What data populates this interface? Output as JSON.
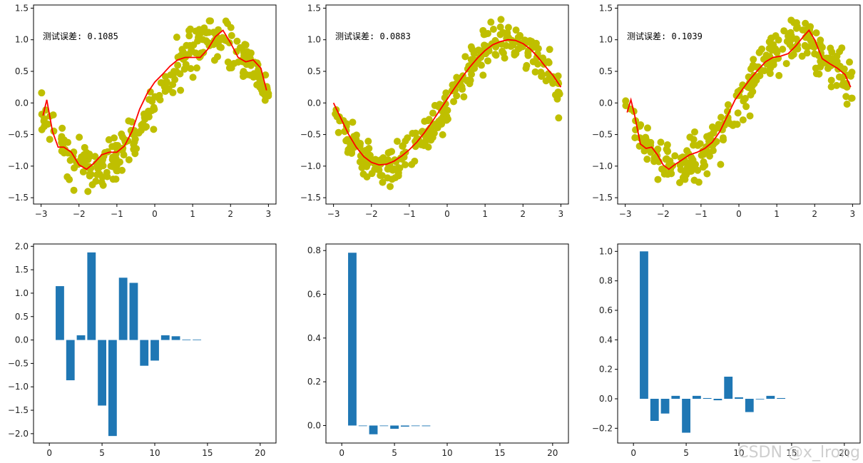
{
  "watermark": "CSDN @x_lrong",
  "colors": {
    "scatter": "#bfbf00",
    "fit_line": "#ff0000",
    "bar": "#1f77b4"
  },
  "chart_data": [
    {
      "type": "scatter",
      "panel": "top-left",
      "annotation": "测试误差: 0.1085",
      "scatter": {
        "kind": "noisy-sine",
        "n": 300,
        "x_range": [
          -3,
          3
        ],
        "noise": 0.25
      },
      "fit": {
        "x": [
          -2.95,
          -2.85,
          -2.7,
          -2.55,
          -2.4,
          -2.2,
          -2.0,
          -1.8,
          -1.6,
          -1.4,
          -1.2,
          -1.0,
          -0.8,
          -0.6,
          -0.4,
          -0.2,
          0.0,
          0.2,
          0.4,
          0.6,
          0.8,
          1.0,
          1.2,
          1.4,
          1.6,
          1.8,
          2.0,
          2.2,
          2.4,
          2.6,
          2.8,
          2.95
        ],
        "y": [
          -0.2,
          0.05,
          -0.45,
          -0.7,
          -0.7,
          -0.78,
          -0.98,
          -1.05,
          -0.95,
          -0.82,
          -0.78,
          -0.78,
          -0.68,
          -0.45,
          -0.1,
          0.15,
          0.33,
          0.45,
          0.58,
          0.68,
          0.72,
          0.72,
          0.72,
          0.85,
          1.05,
          1.15,
          0.95,
          0.72,
          0.65,
          0.68,
          0.55,
          0.2
        ]
      },
      "xticks": [
        -3,
        -2,
        -1,
        0,
        1,
        2,
        3
      ],
      "yticks": [
        -1.5,
        -1.0,
        -0.5,
        0.0,
        0.5,
        1.0,
        1.5
      ],
      "xlim": [
        -3.2,
        3.2
      ],
      "ylim": [
        -1.6,
        1.55
      ]
    },
    {
      "type": "scatter",
      "panel": "top-middle",
      "annotation": "测试误差: 0.0883",
      "scatter": {
        "kind": "noisy-sine",
        "n": 300,
        "x_range": [
          -3,
          3
        ],
        "noise": 0.25
      },
      "fit": {
        "x": [
          -3.0,
          -2.8,
          -2.6,
          -2.4,
          -2.2,
          -2.0,
          -1.8,
          -1.6,
          -1.4,
          -1.2,
          -1.0,
          -0.8,
          -0.6,
          -0.4,
          -0.2,
          0.0,
          0.2,
          0.4,
          0.6,
          0.8,
          1.0,
          1.2,
          1.4,
          1.6,
          1.8,
          2.0,
          2.2,
          2.4,
          2.6,
          2.8,
          3.0
        ],
        "y": [
          0.0,
          -0.25,
          -0.5,
          -0.7,
          -0.85,
          -0.94,
          -0.98,
          -0.97,
          -0.92,
          -0.84,
          -0.74,
          -0.62,
          -0.47,
          -0.3,
          -0.12,
          0.06,
          0.24,
          0.41,
          0.57,
          0.71,
          0.83,
          0.92,
          0.97,
          1.0,
          0.99,
          0.94,
          0.85,
          0.72,
          0.57,
          0.43,
          0.25
        ]
      },
      "xticks": [
        -3,
        -2,
        -1,
        0,
        1,
        2,
        3
      ],
      "yticks": [
        -1.5,
        -1.0,
        -0.5,
        0.0,
        0.5,
        1.0,
        1.5
      ],
      "xlim": [
        -3.2,
        3.2
      ],
      "ylim": [
        -1.6,
        1.55
      ]
    },
    {
      "type": "scatter",
      "panel": "top-right",
      "annotation": "测试误差: 0.1039",
      "scatter": {
        "kind": "noisy-sine",
        "n": 300,
        "x_range": [
          -3,
          3
        ],
        "noise": 0.25
      },
      "fit": {
        "x": [
          -2.95,
          -2.85,
          -2.75,
          -2.6,
          -2.45,
          -2.3,
          -2.15,
          -2.0,
          -1.85,
          -1.7,
          -1.5,
          -1.3,
          -1.1,
          -0.9,
          -0.7,
          -0.5,
          -0.3,
          -0.1,
          0.1,
          0.3,
          0.5,
          0.7,
          0.9,
          1.1,
          1.3,
          1.5,
          1.7,
          1.85,
          2.0,
          2.2,
          2.4,
          2.6,
          2.8,
          2.95
        ],
        "y": [
          -0.15,
          0.05,
          -0.2,
          -0.65,
          -0.72,
          -0.7,
          -0.82,
          -0.98,
          -1.05,
          -0.98,
          -0.9,
          -0.82,
          -0.78,
          -0.72,
          -0.62,
          -0.45,
          -0.2,
          0.05,
          0.22,
          0.38,
          0.52,
          0.65,
          0.72,
          0.74,
          0.78,
          0.9,
          1.05,
          1.15,
          1.0,
          0.7,
          0.62,
          0.55,
          0.45,
          0.25
        ]
      },
      "xticks": [
        -3,
        -2,
        -1,
        0,
        1,
        2,
        3
      ],
      "yticks": [
        -1.5,
        -1.0,
        -0.5,
        0.0,
        0.5,
        1.0,
        1.5
      ],
      "xlim": [
        -3.2,
        3.2
      ],
      "ylim": [
        -1.6,
        1.55
      ]
    },
    {
      "type": "bar",
      "panel": "bottom-left",
      "x": [
        1,
        2,
        3,
        4,
        5,
        6,
        7,
        8,
        9,
        10,
        11,
        12,
        13,
        14
      ],
      "values": [
        1.15,
        -0.86,
        0.1,
        1.87,
        -1.4,
        -2.05,
        1.33,
        1.22,
        -0.55,
        -0.44,
        0.1,
        0.08,
        0.01,
        0.01
      ],
      "xticks": [
        0,
        5,
        10,
        15,
        20
      ],
      "yticks": [
        -2.0,
        -1.5,
        -1.0,
        -0.5,
        0.0,
        0.5,
        1.0,
        1.5,
        2.0
      ],
      "xlim": [
        -1.5,
        21.5
      ],
      "ylim": [
        -2.2,
        2.05
      ]
    },
    {
      "type": "bar",
      "panel": "bottom-middle",
      "x": [
        1,
        2,
        3,
        4,
        5,
        6,
        7,
        8
      ],
      "values": [
        0.79,
        0.0,
        -0.04,
        0.0,
        -0.015,
        -0.005,
        0.0,
        -0.003
      ],
      "xticks": [
        0,
        5,
        10,
        15,
        20
      ],
      "yticks": [
        0.0,
        0.2,
        0.4,
        0.6,
        0.8
      ],
      "xlim": [
        -1.5,
        21.5
      ],
      "ylim": [
        -0.08,
        0.83
      ]
    },
    {
      "type": "bar",
      "panel": "bottom-right",
      "x": [
        1,
        2,
        3,
        4,
        5,
        6,
        7,
        8,
        9,
        10,
        11,
        12,
        13,
        14
      ],
      "values": [
        1.0,
        -0.15,
        -0.1,
        0.02,
        -0.23,
        0.02,
        0.005,
        -0.01,
        0.15,
        0.01,
        -0.09,
        0.0,
        0.02,
        0.005
      ],
      "xticks": [
        0,
        5,
        10,
        15,
        20
      ],
      "yticks": [
        -0.2,
        0.0,
        0.2,
        0.4,
        0.6,
        0.8,
        1.0
      ],
      "xlim": [
        -1.5,
        21.5
      ],
      "ylim": [
        -0.3,
        1.05
      ]
    }
  ]
}
